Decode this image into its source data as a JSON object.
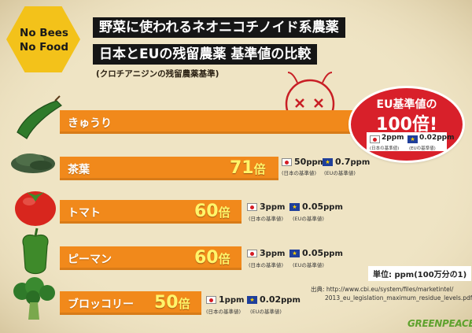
{
  "header": {
    "title_line1": "野菜に使われるネオニコチノイド系農薬",
    "title_line2": "日本とEUの残留農薬 基準値の比較",
    "subtitle": "(クロチアニジンの残留農薬基準)"
  },
  "logo": {
    "line1": "No Bees",
    "line2": "No Food"
  },
  "colors": {
    "bar": "#f1891b",
    "ratio_text": "#fff56b",
    "callout": "#d8202a",
    "background": "#efe4c4",
    "greenpeace": "#5fa22e"
  },
  "chart_data": {
    "type": "bar",
    "orientation": "horizontal",
    "categories": [
      "きゅうり",
      "茶葉",
      "トマト",
      "ピーマン",
      "ブロッコリー"
    ],
    "series": [
      {
        "values": [
          100,
          71,
          60,
          60,
          50
        ]
      }
    ],
    "ratio_suffix": "倍",
    "rows": [
      {
        "name": "きゅうり",
        "ratio": null,
        "japan": "2",
        "eu": "0.02"
      },
      {
        "name": "茶葉",
        "ratio": "71",
        "japan": "50",
        "eu": "0.7"
      },
      {
        "name": "トマト",
        "ratio": "60",
        "japan": "3",
        "eu": "0.05"
      },
      {
        "name": "ピーマン",
        "ratio": "60",
        "japan": "3",
        "eu": "0.05"
      },
      {
        "name": "ブロッコリー",
        "ratio": "50",
        "japan": "1",
        "eu": "0.02"
      }
    ],
    "ppm_unit": "ppm",
    "japan_note": "(日本の基準値)",
    "eu_note": "(EUの基準値)",
    "callout": {
      "line1": "EU基準値の",
      "line2": "100倍!",
      "japan": "2",
      "eu": "0.02"
    },
    "unit_label": "単位: ppm(100万分の1)"
  },
  "source": {
    "label": "出典:",
    "line1": "http://www.cbi.eu/system/files/marketintel/",
    "line2": "2013_eu_legislation_maximum_residue_levels.pdf"
  },
  "footer": {
    "brand": "GREENPEACE"
  }
}
